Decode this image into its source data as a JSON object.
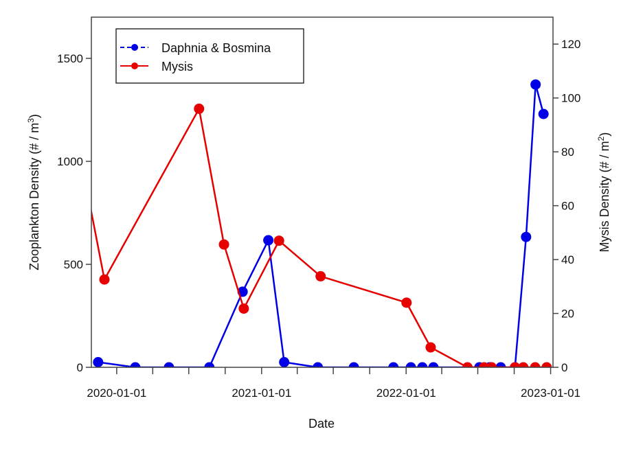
{
  "chart_data": {
    "type": "line",
    "title": "",
    "xlabel": "Date",
    "ylabel_left": "Zooplankton Density (# / m",
    "ylabel_left_sup": "3",
    "ylabel_left_end": ")",
    "ylabel_right": "Mysis Density (# / m",
    "ylabel_right_sup": "2",
    "ylabel_right_end": ")",
    "xlim": [
      "2019-10-29",
      "2023-01-07"
    ],
    "ylim_left": [
      0,
      1700
    ],
    "ylim_right": [
      0,
      130
    ],
    "x_ticks": [
      "2020-01-01",
      "2021-01-01",
      "2022-01-01",
      "2023-01-01"
    ],
    "y_ticks_left": [
      0,
      500,
      1000,
      1500
    ],
    "y_ticks_right": [
      0,
      20,
      40,
      60,
      80,
      100,
      120
    ],
    "grid": false,
    "legend_position": "top-left",
    "series": [
      {
        "name": "Daphnia & Bosmina",
        "axis": "left",
        "color": "#0000e6",
        "legend_line": "dashed",
        "x": [
          "2019-11-15",
          "2020-02-17",
          "2020-05-12",
          "2020-08-22",
          "2020-11-14",
          "2021-01-18",
          "2021-02-27",
          "2021-05-23",
          "2021-08-22",
          "2021-11-30",
          "2022-01-13",
          "2022-02-11",
          "2022-03-11",
          "2022-07-05",
          "2022-07-31",
          "2022-08-28",
          "2022-10-03",
          "2022-10-31",
          "2022-11-24",
          "2022-12-14"
        ],
        "y": [
          25,
          0,
          0,
          0,
          367,
          617,
          25,
          0,
          0,
          0,
          0,
          0,
          0,
          0,
          0,
          0,
          0,
          633,
          1373,
          1230
        ]
      },
      {
        "name": "Mysis",
        "axis": "right",
        "color": "#e60000",
        "legend_line": "solid",
        "x": [
          "2019-10-06",
          "2019-12-01",
          "2020-07-27",
          "2020-09-28",
          "2020-11-17",
          "2021-02-14",
          "2021-05-30",
          "2022-01-02",
          "2022-03-04",
          "2022-06-05",
          "2022-07-17",
          "2022-08-05",
          "2022-10-03",
          "2022-10-24",
          "2022-11-23",
          "2022-12-22"
        ],
        "y": [
          75,
          32.6,
          96,
          45.6,
          21.8,
          47,
          33.8,
          24,
          7.4,
          0,
          0,
          0,
          0,
          0,
          0,
          0
        ]
      }
    ]
  }
}
